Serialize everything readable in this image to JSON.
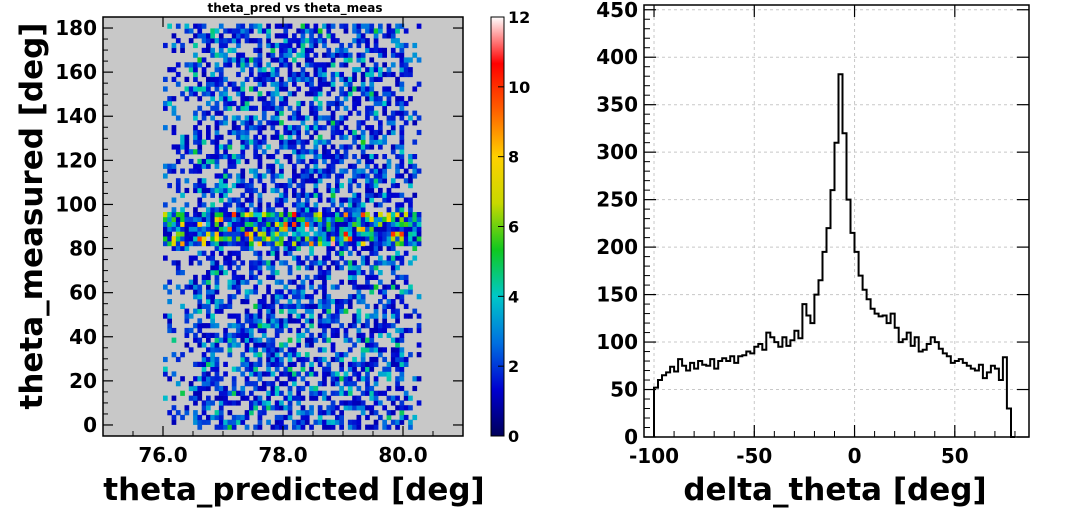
{
  "chart_data": [
    {
      "type": "heatmap",
      "title": "theta_pred vs theta_meas",
      "xlabel": "theta_predicted  [deg]",
      "ylabel": "theta_measured [deg]",
      "xlim": [
        75.0,
        81.0
      ],
      "ylim": [
        -5,
        185
      ],
      "x_ticks": [
        "76.0",
        "78.0",
        "80.0"
      ],
      "y_ticks": [
        "0",
        "20",
        "40",
        "60",
        "80",
        "100",
        "120",
        "140",
        "160",
        "180"
      ],
      "populated_x_range": [
        76.0,
        80.3
      ],
      "dense_band_y_range": [
        80,
        95
      ],
      "colorbar": {
        "range": [
          0,
          12
        ],
        "ticks": [
          "0",
          "2",
          "4",
          "6",
          "8",
          "10",
          "12"
        ],
        "colors": [
          "#00005a",
          "#0000d0",
          "#0070e0",
          "#00c8c8",
          "#10c820",
          "#c8d800",
          "#ffd000",
          "#ff6000",
          "#ff0000",
          "#ffffff"
        ]
      },
      "background_color": "#c8c8c8"
    },
    {
      "type": "line",
      "style": "step-histogram",
      "xlabel": "delta_theta [deg]",
      "ylabel": "",
      "xlim": [
        -105,
        87
      ],
      "ylim": [
        0,
        455
      ],
      "x_ticks": [
        "-100",
        "-50",
        "0",
        "50"
      ],
      "y_ticks": [
        "0",
        "50",
        "100",
        "150",
        "200",
        "250",
        "300",
        "350",
        "400",
        "450"
      ],
      "grid": true,
      "bin_width": 2,
      "x_edges_start": -100,
      "values": [
        52,
        60,
        65,
        68,
        74,
        69,
        82,
        75,
        70,
        78,
        72,
        80,
        76,
        75,
        82,
        72,
        80,
        83,
        80,
        85,
        78,
        85,
        86,
        90,
        88,
        95,
        98,
        92,
        110,
        105,
        100,
        95,
        105,
        96,
        102,
        112,
        104,
        140,
        128,
        120,
        150,
        165,
        195,
        220,
        260,
        310,
        382,
        320,
        250,
        215,
        195,
        170,
        155,
        145,
        135,
        130,
        127,
        128,
        120,
        130,
        115,
        100,
        103,
        110,
        96,
        105,
        90,
        92,
        98,
        105,
        100,
        93,
        88,
        85,
        78,
        80,
        82,
        78,
        75,
        72,
        70,
        76,
        62,
        68,
        75,
        72,
        60,
        84,
        30,
        0
      ]
    }
  ]
}
